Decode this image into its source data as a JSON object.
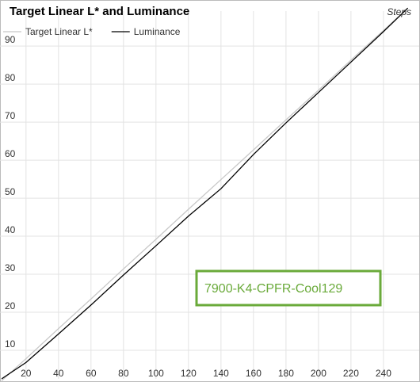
{
  "chart_data": {
    "type": "line",
    "title": "Target Linear L* and Luminance",
    "xlabel": "Steps",
    "annotation": "7900-K4-CPFR-Cool129",
    "x": [
      5,
      20,
      40,
      60,
      80,
      100,
      120,
      140,
      160,
      180,
      200,
      220,
      240,
      255
    ],
    "series": [
      {
        "name": "Target Linear L*",
        "color": "#c8c8c8",
        "values": [
          2.0,
          7.8,
          15.7,
          23.5,
          31.4,
          39.2,
          47.1,
          54.9,
          62.7,
          70.6,
          78.4,
          86.3,
          94.1,
          100
        ]
      },
      {
        "name": "Luminance",
        "color": "#000000",
        "values": [
          2.5,
          6.8,
          14.3,
          21.9,
          29.8,
          37.5,
          45.3,
          52.5,
          61.5,
          69.8,
          77.8,
          85.8,
          93.8,
          100
        ]
      }
    ],
    "xlim": [
      4,
      262
    ],
    "xticks": [
      20,
      40,
      60,
      80,
      100,
      120,
      140,
      160,
      180,
      200,
      220,
      240
    ],
    "ylim": [
      2.5,
      99.2
    ],
    "yticks": [
      10,
      20,
      30,
      40,
      50,
      60,
      70,
      80,
      90
    ],
    "grid": true,
    "legend": "top-left"
  }
}
